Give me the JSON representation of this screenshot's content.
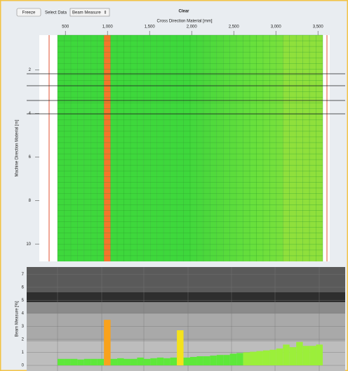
{
  "toolbar": {
    "freeze": "Freeze",
    "select_label": "Select Data",
    "select_value": "Beam Measure",
    "clear": "Clear"
  },
  "chart_data": [
    {
      "type": "heatmap",
      "xlabel": "Cross Direction Material [mm]",
      "ylabel": "Machine Direction Material [m]",
      "xlim": [
        190,
        3640
      ],
      "xticks": [
        500,
        {
          "value": 1000,
          "label": "1,000"
        },
        {
          "value": 1500,
          "label": "1,500"
        },
        {
          "value": 2000,
          "label": "2,000"
        },
        {
          "value": 2500,
          "label": "2,500"
        },
        {
          "value": 3000,
          "label": "3,000"
        },
        {
          "value": 3500,
          "label": "3,500"
        }
      ],
      "ylim": [
        0.4,
        10.8
      ],
      "yticks": [
        2,
        4,
        6,
        8,
        10
      ],
      "colors": [
        "#3ed83c",
        "#3ed83c",
        "#3ed83c",
        "#3ed83c",
        "#3ed83c",
        "#3ed83c",
        "#3ed83c",
        "#f4762a",
        "#3ed83c",
        "#3ed83c",
        "#3ed83c",
        "#3ed83c",
        "#3ed83c",
        "#3ed83c",
        "#3ed83c",
        "#3ed83c",
        "#3ed83c",
        "#3ed83c",
        "#3ed83c",
        "#3ed83c",
        "#44d83c",
        "#48d83c",
        "#4cd83c",
        "#50da3c",
        "#54da3c",
        "#58dc3c",
        "#5cdc3c",
        "#60de3c",
        "#64de3c",
        "#68e03c",
        "#6ce03c",
        "#70e03c",
        "#74e03c",
        "#78e03c",
        "#8fe03c",
        "#8fe03c",
        "#8fe03c",
        "#8fe03c",
        "#8fe03c",
        "#8fe03c"
      ]
    },
    {
      "type": "bar",
      "ylabel": "Beam Measure [%]",
      "ylim": [
        0,
        7.4
      ],
      "yticks": [
        0,
        1,
        2,
        3,
        4,
        5,
        6,
        7
      ],
      "values": [
        0.5,
        0.5,
        0.5,
        0.45,
        0.5,
        0.5,
        0.5,
        3.5,
        0.5,
        0.55,
        0.5,
        0.5,
        0.6,
        0.5,
        0.55,
        0.6,
        0.55,
        0.6,
        2.7,
        0.6,
        0.65,
        0.7,
        0.7,
        0.75,
        0.8,
        0.8,
        0.9,
        0.95,
        1.0,
        1.05,
        1.1,
        1.15,
        1.2,
        1.3,
        1.6,
        1.4,
        1.8,
        1.5,
        1.5,
        1.6
      ],
      "colors": [
        "#5ee83a",
        "#5ee83a",
        "#5ee83a",
        "#5ee83a",
        "#5ee83a",
        "#5ee83a",
        "#5ee83a",
        "#f9a21b",
        "#5ee83a",
        "#5ee83a",
        "#5ee83a",
        "#5ee83a",
        "#5ee83a",
        "#5ee83a",
        "#5ee83a",
        "#5ee83a",
        "#5ee83a",
        "#5ee83a",
        "#f4e21c",
        "#5ee83a",
        "#5ee83a",
        "#5ee83a",
        "#5ee83a",
        "#5ee83a",
        "#5ee83a",
        "#5ee83a",
        "#5ee83a",
        "#5ee83a",
        "#9bef3a",
        "#9bef3a",
        "#9bef3a",
        "#9bef3a",
        "#9bef3a",
        "#9bef3a",
        "#9bef3a",
        "#9bef3a",
        "#9bef3a",
        "#9bef3a",
        "#9bef3a",
        "#9bef3a"
      ]
    }
  ]
}
